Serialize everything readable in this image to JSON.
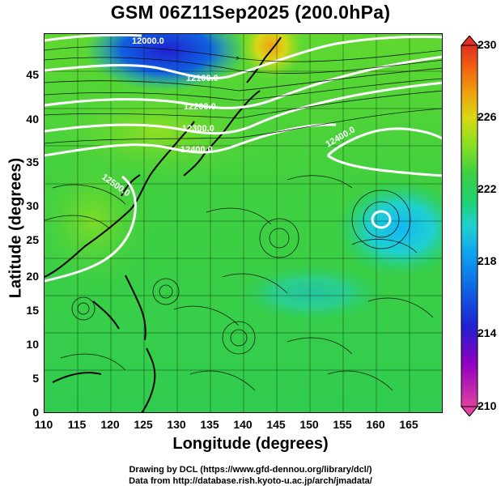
{
  "title": "GSM 06Z11Sep2025 (200.0hPa)",
  "x_axis": {
    "label": "Longitude (degrees)",
    "ticks": [
      "110",
      "115",
      "120",
      "125",
      "130",
      "135",
      "140",
      "145",
      "150",
      "155",
      "160",
      "165"
    ]
  },
  "y_axis": {
    "label": "Latitude  (degrees)",
    "ticks": [
      "0",
      "5",
      "10",
      "15",
      "20",
      "25",
      "30",
      "35",
      "40",
      "45"
    ]
  },
  "colorbar": {
    "ticks": [
      "210",
      "214",
      "218",
      "222",
      "226",
      "230"
    ],
    "colors": [
      "#e040a0",
      "#9000c0",
      "#2020d0",
      "#1060e0",
      "#10a0f0",
      "#20d0d0",
      "#20d070",
      "#40d040",
      "#90e020",
      "#d8d818",
      "#f0a010",
      "#f06010",
      "#e03020"
    ]
  },
  "contour_labels": [
    "12000.0",
    "12100.0",
    "12200.0",
    "12300.0",
    "12400.0",
    "12500.0",
    "12400.0"
  ],
  "credits": {
    "line1": "Drawing by DCL (https://www.gfd-dennou.org/library/dcl/)",
    "line2": "Data from http://database.rish.kyoto-u.ac.jp/arch/jmadata/"
  }
}
